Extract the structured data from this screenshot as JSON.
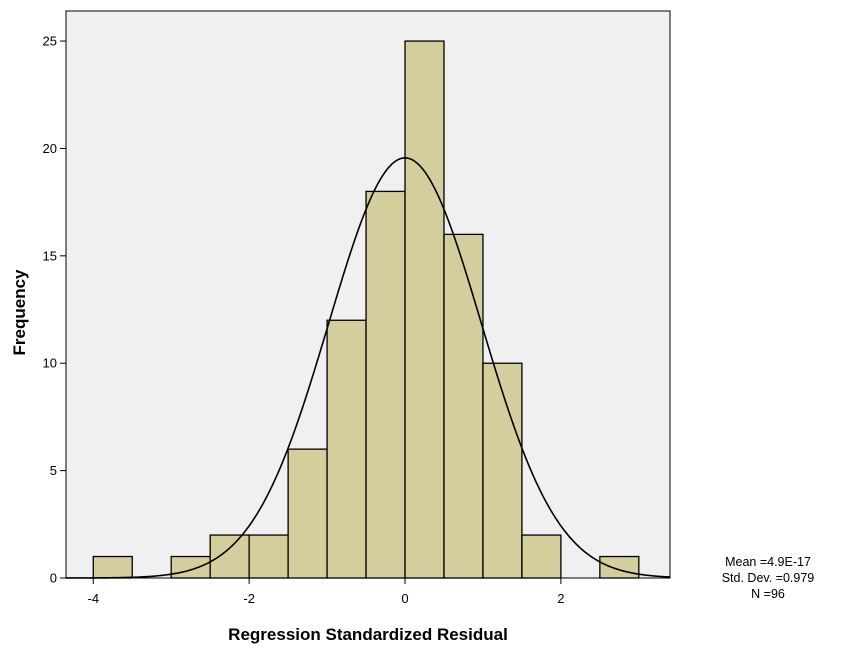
{
  "chart_data": {
    "type": "bar",
    "subtype": "histogram",
    "xlabel": "Regression Standardized Residual",
    "ylabel": "Frequency",
    "bin_width": 0.5,
    "bins": [
      {
        "start": -4.0,
        "end": -3.5,
        "count": 1
      },
      {
        "start": -3.5,
        "end": -3.0,
        "count": 0
      },
      {
        "start": -3.0,
        "end": -2.5,
        "count": 1
      },
      {
        "start": -2.5,
        "end": -2.0,
        "count": 2
      },
      {
        "start": -2.0,
        "end": -1.5,
        "count": 2
      },
      {
        "start": -1.5,
        "end": -1.0,
        "count": 6
      },
      {
        "start": -1.0,
        "end": -0.5,
        "count": 12
      },
      {
        "start": -0.5,
        "end": 0.0,
        "count": 18
      },
      {
        "start": 0.0,
        "end": 0.5,
        "count": 25
      },
      {
        "start": 0.5,
        "end": 1.0,
        "count": 16
      },
      {
        "start": 1.0,
        "end": 1.5,
        "count": 10
      },
      {
        "start": 1.5,
        "end": 2.0,
        "count": 2
      },
      {
        "start": 2.0,
        "end": 2.5,
        "count": 0
      },
      {
        "start": 2.5,
        "end": 3.0,
        "count": 1
      }
    ],
    "normal_curve": {
      "mean": 4.9e-17,
      "std_dev": 0.979,
      "n": 96
    },
    "xlim": [
      -4.35,
      3.4
    ],
    "ylim": [
      0,
      26.4
    ],
    "xticks": [
      -4,
      -2,
      0,
      2
    ],
    "yticks": [
      0,
      5,
      10,
      15,
      20,
      25
    ],
    "grid": false,
    "colors": {
      "plot_background": "#f0f0f0",
      "bar_fill": "#d3ce9b",
      "bar_stroke": "#000000",
      "curve": "#000000"
    }
  },
  "stats_box": {
    "mean": "Mean =4.9E-17",
    "std_dev": "Std. Dev. =0.979",
    "n": "N =96"
  }
}
